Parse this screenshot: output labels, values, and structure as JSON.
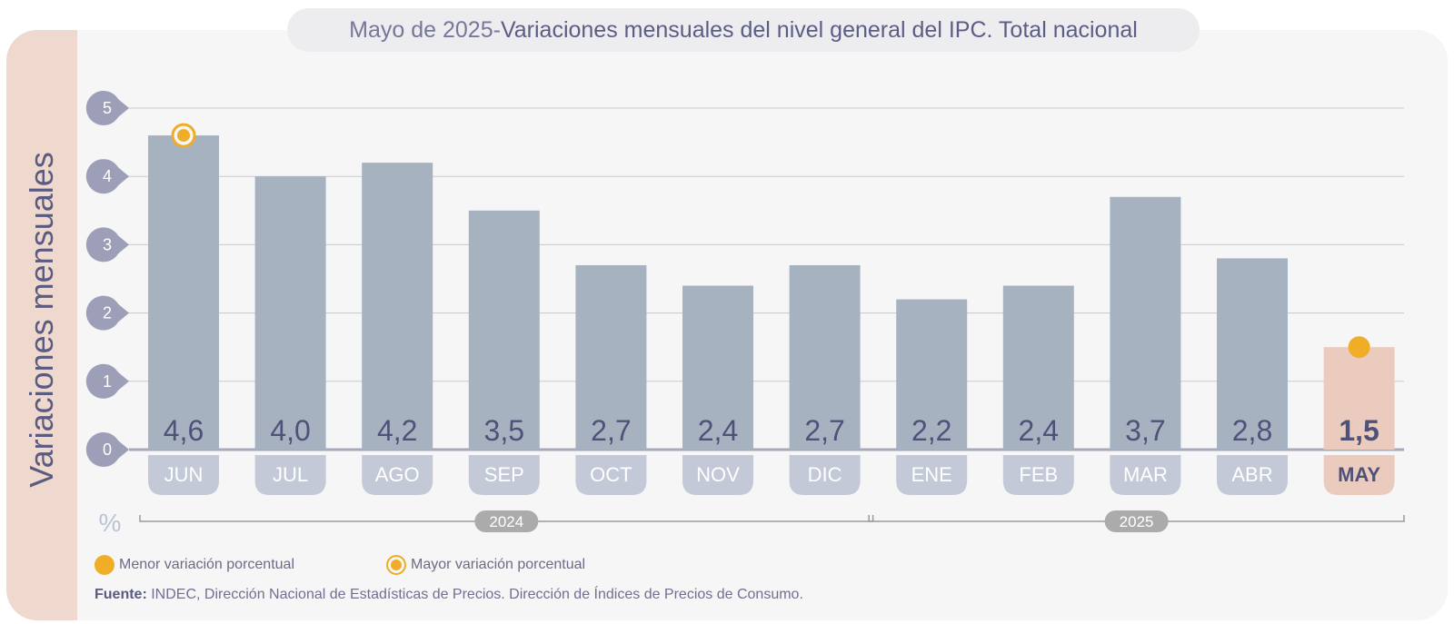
{
  "title": {
    "prefix": "Mayo de 2025",
    "separator": " - ",
    "main": "Variaciones mensuales del nivel general del IPC. Total nacional"
  },
  "side_label": "Variaciones mensuales",
  "unit_label": "%",
  "legend": {
    "min_label": "Menor variación porcentual",
    "max_label": "Mayor variación porcentual"
  },
  "source": {
    "prefix": "Fuente:",
    "text": "INDEC, Dirección Nacional de Estadísticas de Precios. Dirección de Índices de Precios de Consumo."
  },
  "colors": {
    "bar": "#a7b2c1",
    "bar_highlight": "#ebcbbd",
    "month_tab": "#c3c9d6",
    "month_tab_highlight": "#ebcbbd",
    "axis_marker": "#9d9fb8",
    "accent": "#f0ae28",
    "label_dark": "#4f5278",
    "year_pill": "#ababab"
  },
  "chart_data": {
    "type": "bar",
    "categories": [
      "JUN",
      "JUL",
      "AGO",
      "SEP",
      "OCT",
      "NOV",
      "DIC",
      "ENE",
      "FEB",
      "MAR",
      "ABR",
      "MAY"
    ],
    "values": [
      4.6,
      4.0,
      4.2,
      3.5,
      2.7,
      2.4,
      2.7,
      2.2,
      2.4,
      3.7,
      2.8,
      1.5
    ],
    "value_labels": [
      "4,6",
      "4,0",
      "4,2",
      "3,5",
      "2,7",
      "2,4",
      "2,7",
      "2,2",
      "2,4",
      "3,7",
      "2,8",
      "1,5"
    ],
    "highlight_index": 11,
    "max_index": 0,
    "min_index": 11,
    "y_ticks": [
      "0",
      "1",
      "2",
      "3",
      "4",
      "5"
    ],
    "ylim": [
      0,
      5
    ],
    "grid": true,
    "year_groups": [
      {
        "label": "2024",
        "from": 0,
        "to": 6
      },
      {
        "label": "2025",
        "from": 7,
        "to": 11
      }
    ]
  }
}
